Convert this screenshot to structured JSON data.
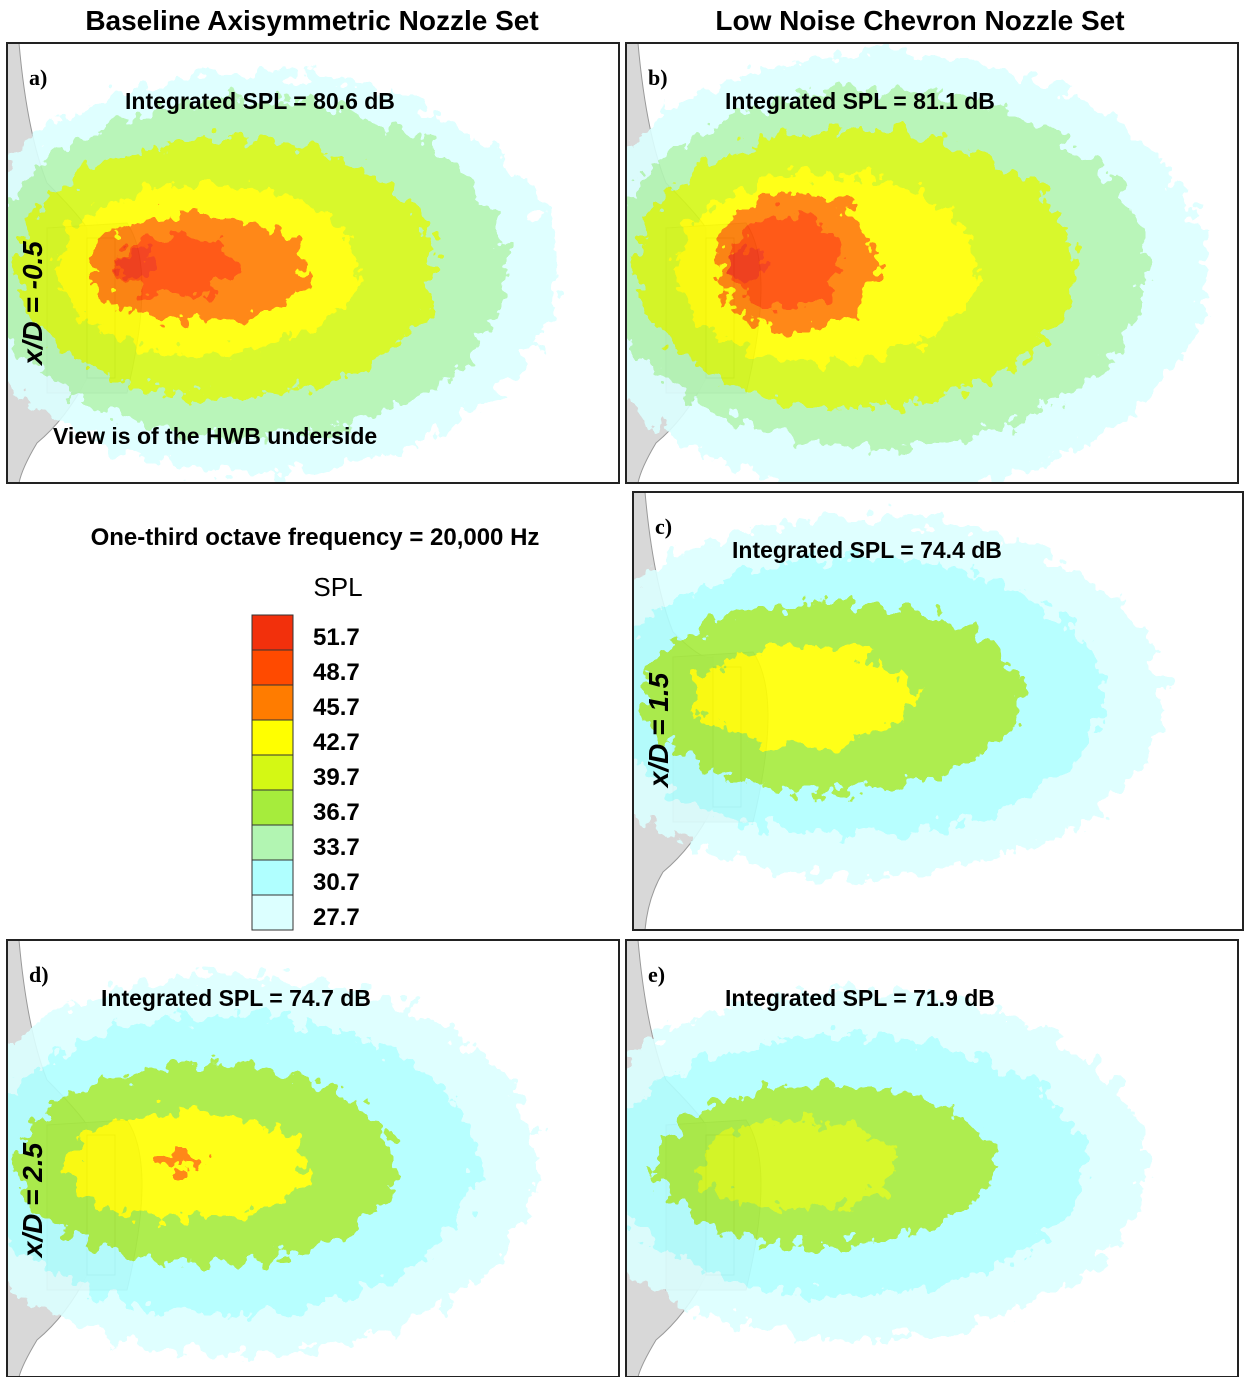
{
  "headers": [
    "Baseline Axisymmetric Nozzle Set",
    "Low Noise Chevron Nozzle Set"
  ],
  "panels": [
    {
      "label": "a)",
      "spl": "Integrated SPL = 80.6 dB",
      "xd": "x/D = -0.5",
      "note": "View is of the HWB underside"
    },
    {
      "label": "b)",
      "spl": "Integrated SPL = 81.1 dB"
    },
    {
      "label": "c)",
      "spl": "Integrated SPL = 74.4 dB",
      "xd": "x/D = 1.5"
    },
    {
      "label": "d)",
      "spl": "Integrated SPL = 74.7 dB",
      "xd": "x/D = 2.5"
    },
    {
      "label": "e)",
      "spl": "Integrated SPL = 71.9 dB"
    }
  ],
  "legend": {
    "title": "One-third octave frequency = 20,000 Hz",
    "name": "SPL",
    "levels": [
      {
        "value": 51.7,
        "color": "#f2300c"
      },
      {
        "value": 48.7,
        "color": "#ff4a00"
      },
      {
        "value": 45.7,
        "color": "#ff7c00"
      },
      {
        "value": 42.7,
        "color": "#ffff00"
      },
      {
        "value": 39.7,
        "color": "#d4f814"
      },
      {
        "value": 36.7,
        "color": "#a6ec3c"
      },
      {
        "value": 33.7,
        "color": "#b2f5b2"
      },
      {
        "value": 30.7,
        "color": "#b0ffff"
      },
      {
        "value": 27.7,
        "color": "#dcffff"
      }
    ]
  }
}
